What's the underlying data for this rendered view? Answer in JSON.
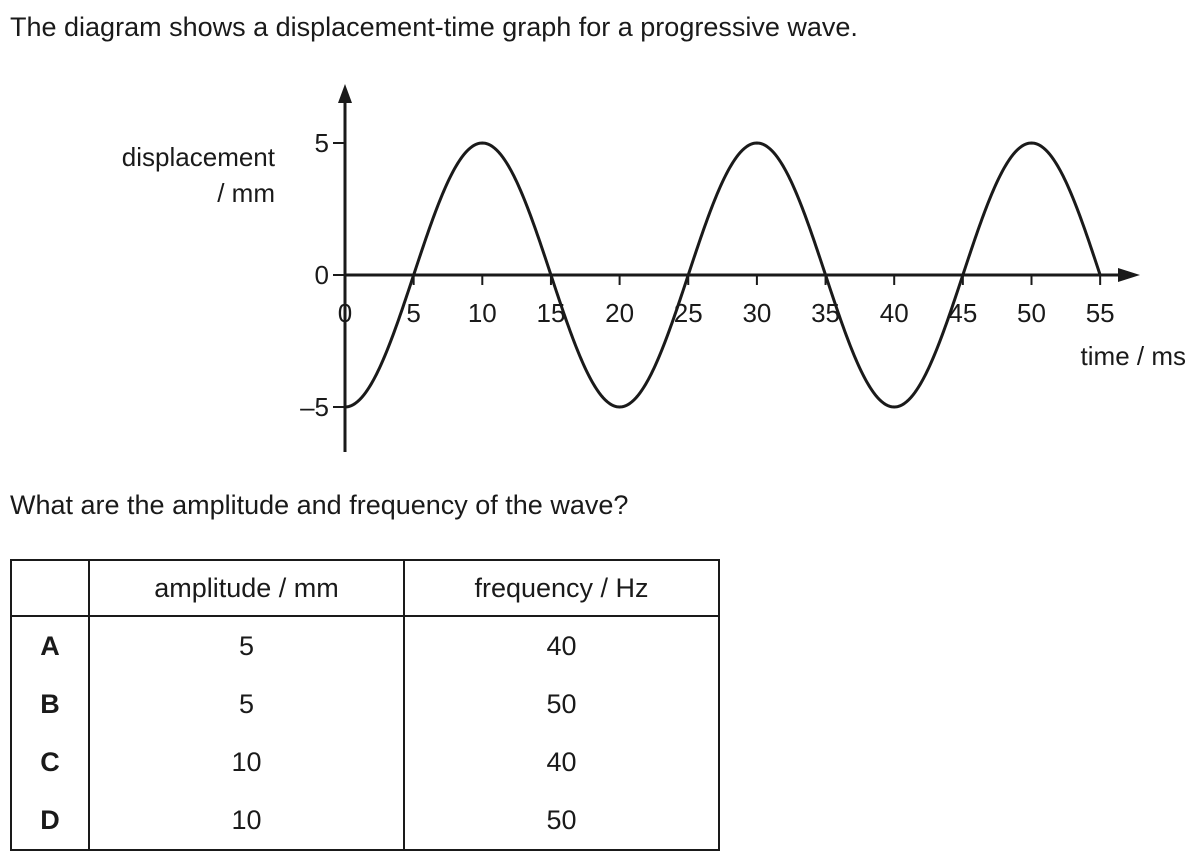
{
  "intro": "The diagram shows a displacement-time graph for a progressive wave.",
  "question": "What are the amplitude and frequency of the wave?",
  "chart_data": {
    "type": "line",
    "ylabel_line1": "displacement",
    "ylabel_line2": "/ mm",
    "xlabel": "time / ms",
    "x_ticks": [
      "0",
      "5",
      "10",
      "15",
      "20",
      "25",
      "30",
      "35",
      "40",
      "45",
      "50",
      "55"
    ],
    "y_ticks": [
      {
        "value": 5,
        "label": "5"
      },
      {
        "value": 0,
        "label": "0"
      },
      {
        "value": -5,
        "label": "–5"
      }
    ],
    "xlim": [
      0,
      55
    ],
    "ylim": [
      -5,
      5
    ],
    "grid": false,
    "series": [
      {
        "x": [
          0,
          5,
          10,
          15,
          20,
          25,
          30,
          35,
          40,
          45,
          50,
          55
        ],
        "y": [
          -5,
          0,
          5,
          0,
          -5,
          0,
          5,
          0,
          -5,
          0,
          5,
          0
        ]
      }
    ]
  },
  "table": {
    "headers": [
      "",
      "amplitude / mm",
      "frequency / Hz"
    ],
    "rows": [
      {
        "letter": "A",
        "amplitude": "5",
        "frequency": "40"
      },
      {
        "letter": "B",
        "amplitude": "5",
        "frequency": "50"
      },
      {
        "letter": "C",
        "amplitude": "10",
        "frequency": "40"
      },
      {
        "letter": "D",
        "amplitude": "10",
        "frequency": "50"
      }
    ]
  }
}
